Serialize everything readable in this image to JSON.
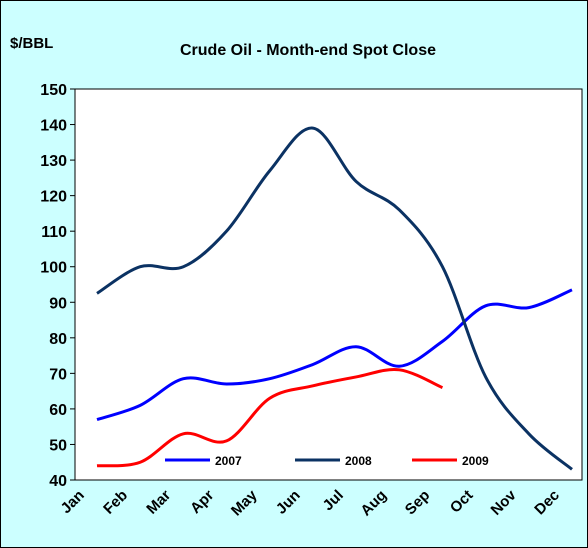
{
  "chart_data": {
    "type": "line",
    "title": "Crude Oil - Month-end Spot Close",
    "ylabel": "$/BBL",
    "categories": [
      "Jan",
      "Feb",
      "Mar",
      "Apr",
      "May",
      "Jun",
      "Jul",
      "Aug",
      "Sep",
      "Oct",
      "Nov",
      "Dec"
    ],
    "series": [
      {
        "name": "2007",
        "color": "#0000ff",
        "values": [
          57,
          61,
          68.5,
          67,
          68.5,
          72.5,
          77.5,
          72,
          79,
          89,
          88.5,
          93.5
        ]
      },
      {
        "name": "2008",
        "color": "#0b3263",
        "values": [
          92.5,
          100,
          100,
          110,
          127,
          139,
          124,
          116,
          100,
          69,
          53,
          43
        ]
      },
      {
        "name": "2009",
        "color": "#ff0000",
        "values": [
          44,
          45,
          53,
          51,
          63,
          66.5,
          69,
          71,
          66,
          null,
          null,
          null
        ]
      }
    ],
    "ylim": [
      40,
      150
    ],
    "yticks": [
      40,
      50,
      60,
      70,
      80,
      90,
      100,
      110,
      120,
      130,
      140,
      150
    ],
    "grid": false,
    "legend": "bottom"
  }
}
